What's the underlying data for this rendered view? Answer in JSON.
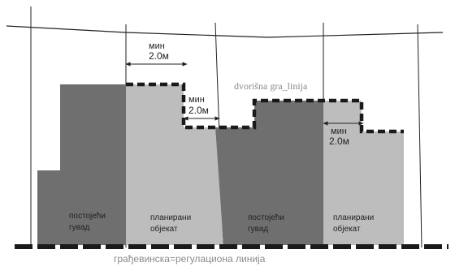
{
  "dims": {
    "min1": {
      "line1": "мин",
      "line2": "2.0м"
    },
    "min2": {
      "line1": "мин",
      "line2": "2.0м"
    },
    "min3": {
      "line1": "мин",
      "line2": "2.0м"
    }
  },
  "labels": {
    "boundary": "dvorišna gra_linija",
    "bottom": "грађевинска=регулациона линија"
  },
  "blocks": {
    "b1": {
      "line1": "постојећи",
      "line2": "гувад"
    },
    "b2": {
      "line1": "планирани",
      "line2": "објекат"
    },
    "b3": {
      "line1": "постојећи",
      "line2": "гувад"
    },
    "b4": {
      "line1": "планирани",
      "line2": "објекат"
    }
  },
  "colors": {
    "dark": "#6f6f6f",
    "light": "#bdbdbd",
    "line": "#222222",
    "dash": "#1a1a1a",
    "label": "#8a8a8a"
  }
}
